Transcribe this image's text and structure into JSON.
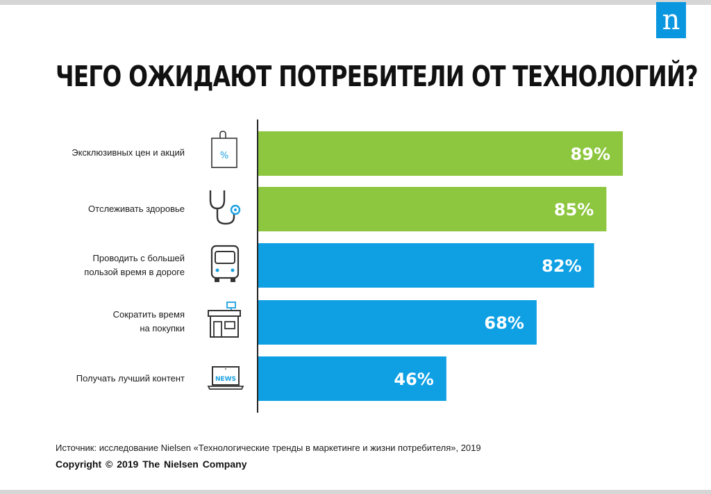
{
  "title": "ЧЕГО ОЖИДАЮТ ПОТРЕБИТЕЛИ ОТ ТЕХНОЛОГИЙ?",
  "logo_letter": "n",
  "source": "Источник: исследование Nielsen «Технологические тренды в маркетинге и жизни потребителя», 2019",
  "copyright": "Copyright © 2019 The Nielsen Company",
  "colors": {
    "green": "#8dc63f",
    "blue": "#0fa0e4",
    "icon": "#333333",
    "icon_accent": "#1aa0e0"
  },
  "chart_data": {
    "type": "bar",
    "orientation": "horizontal",
    "categories": [
      [
        "Эксклюзивных цен и акций"
      ],
      [
        "Отслеживать здоровье"
      ],
      [
        "Проводить с большей",
        "пользой время в дороге"
      ],
      [
        "Сократить время",
        "на покупки"
      ],
      [
        "Получать лучший контент"
      ]
    ],
    "values": [
      89,
      85,
      82,
      68,
      46
    ],
    "value_labels": [
      "89%",
      "85%",
      "82%",
      "68%",
      "46%"
    ],
    "bar_colors": [
      "#8dc63f",
      "#8dc63f",
      "#0fa0e4",
      "#0fa0e4",
      "#0fa0e4"
    ],
    "icons": [
      "shopping-bag-percent-icon",
      "stethoscope-icon",
      "bus-icon",
      "store-icon",
      "news-laptop-icon"
    ],
    "xlim": [
      0,
      100
    ],
    "grid": false,
    "legend": "none"
  }
}
